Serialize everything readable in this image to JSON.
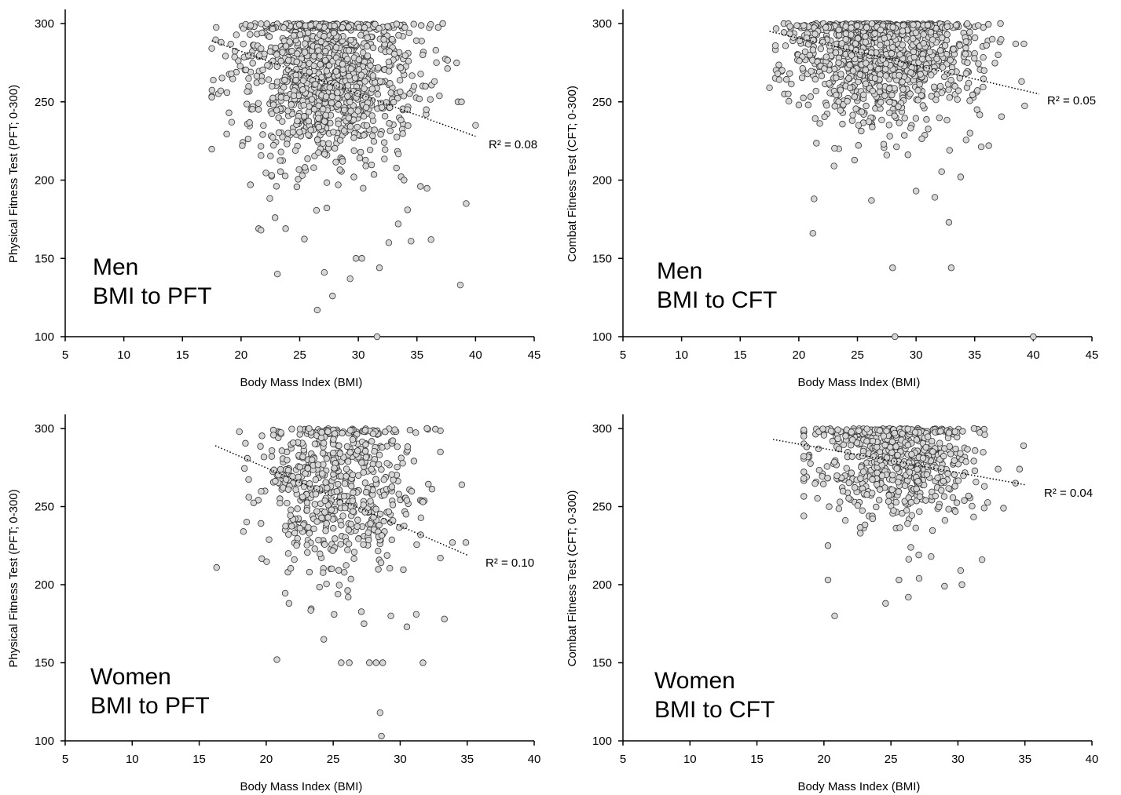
{
  "chart_data": [
    {
      "type": "scatter",
      "panel_label": [
        "Men",
        "BMI to PFT"
      ],
      "xlabel": "Body Mass Index (BMI)",
      "ylabel": "Physical Fitness Test (PFT; 0-300)",
      "xlim": [
        5,
        45
      ],
      "ylim": [
        100,
        300
      ],
      "xticks": [
        "5",
        "10",
        "15",
        "20",
        "25",
        "30",
        "35",
        "40",
        "45"
      ],
      "yticks": [
        "100",
        "150",
        "200",
        "250",
        "300"
      ],
      "r2_label": "R² = 0.08",
      "trendline": {
        "x": [
          17.5,
          40
        ],
        "y": [
          289,
          228
        ]
      },
      "grid": false,
      "legend": "none",
      "cloud": {
        "n": 1100,
        "x_center": 27.5,
        "x_spread": 3.6,
        "x_range": [
          17.5,
          40
        ],
        "y_center": 268,
        "y_spread": 28,
        "seed": 11
      },
      "points": [
        [
          17.5,
          253
        ],
        [
          18.3,
          288
        ],
        [
          19.2,
          237
        ],
        [
          20.1,
          222
        ],
        [
          20.8,
          197
        ],
        [
          21.5,
          169
        ],
        [
          21.7,
          168
        ],
        [
          23.1,
          140
        ],
        [
          22.9,
          176
        ],
        [
          23.8,
          169
        ],
        [
          26.5,
          117
        ],
        [
          27.1,
          141
        ],
        [
          27.8,
          126
        ],
        [
          29.3,
          137
        ],
        [
          29.8,
          150
        ],
        [
          30.3,
          150
        ],
        [
          31.6,
          100
        ],
        [
          31.8,
          144
        ],
        [
          32.6,
          160
        ],
        [
          33.4,
          172
        ],
        [
          34.5,
          161
        ],
        [
          35.3,
          196
        ],
        [
          36.2,
          162
        ],
        [
          37.2,
          300
        ],
        [
          38.5,
          250
        ],
        [
          38.8,
          250
        ],
        [
          38.7,
          133
        ],
        [
          39.2,
          185
        ],
        [
          40.0,
          235
        ],
        [
          35.8,
          245
        ],
        [
          36.5,
          263
        ],
        [
          35.5,
          280
        ],
        [
          33.9,
          200
        ],
        [
          34.2,
          181
        ]
      ]
    },
    {
      "type": "scatter",
      "panel_label": [
        "Men",
        "BMI to CFT"
      ],
      "xlabel": "Body Mass Index (BMI)",
      "ylabel": "Combat Fitness Test (CFT; 0-300)",
      "xlim": [
        5,
        45
      ],
      "ylim": [
        100,
        300
      ],
      "xticks": [
        "5",
        "10",
        "15",
        "20",
        "25",
        "30",
        "35",
        "40",
        "45"
      ],
      "yticks": [
        "100",
        "150",
        "200",
        "250",
        "300"
      ],
      "r2_label": "R² = 0.05",
      "trendline": {
        "x": [
          17.5,
          40.5
        ],
        "y": [
          295,
          255
        ]
      },
      "grid": false,
      "legend": "none",
      "cloud": {
        "n": 1200,
        "x_center": 27,
        "x_spread": 3.6,
        "x_range": [
          18,
          40
        ],
        "y_center": 283,
        "y_spread": 22,
        "seed": 23
      },
      "points": [
        [
          17.5,
          259
        ],
        [
          18.2,
          268
        ],
        [
          19.1,
          255
        ],
        [
          20.0,
          248
        ],
        [
          20.8,
          248
        ],
        [
          21.2,
          166
        ],
        [
          21.3,
          188
        ],
        [
          23.0,
          209
        ],
        [
          26.2,
          187
        ],
        [
          27.5,
          216
        ],
        [
          28.0,
          144
        ],
        [
          28.2,
          100
        ],
        [
          30.0,
          193
        ],
        [
          31.6,
          189
        ],
        [
          32.8,
          173
        ],
        [
          33.0,
          144
        ],
        [
          33.8,
          202
        ],
        [
          35.2,
          245
        ],
        [
          36.2,
          222
        ],
        [
          37.2,
          300
        ],
        [
          38.5,
          287
        ],
        [
          39.2,
          287
        ],
        [
          39.0,
          263
        ],
        [
          40.0,
          100
        ],
        [
          36.5,
          290
        ],
        [
          35.8,
          270
        ],
        [
          34.6,
          230
        ],
        [
          37.0,
          280
        ]
      ]
    },
    {
      "type": "scatter",
      "panel_label": [
        "Women",
        "BMI to PFT"
      ],
      "xlabel": "Body Mass Index (BMI)",
      "ylabel": "Physical Fitness Test (PFT; 0-300)",
      "xlim": [
        5,
        40
      ],
      "ylim": [
        100,
        300
      ],
      "xticks": [
        "5",
        "10",
        "15",
        "20",
        "25",
        "30",
        "35",
        "40"
      ],
      "yticks": [
        "100",
        "150",
        "200",
        "250",
        "300"
      ],
      "r2_label": "R² = 0.10",
      "trendline": {
        "x": [
          16.2,
          35
        ],
        "y": [
          289,
          219
        ]
      },
      "grid": false,
      "legend": "none",
      "cloud": {
        "n": 600,
        "x_center": 25.3,
        "x_spread": 2.9,
        "x_range": [
          18,
          33
        ],
        "y_center": 262,
        "y_spread": 28,
        "seed": 37
      },
      "points": [
        [
          16.3,
          211
        ],
        [
          18.3,
          234
        ],
        [
          18.7,
          256
        ],
        [
          20.8,
          152
        ],
        [
          21.7,
          188
        ],
        [
          24.3,
          165
        ],
        [
          25.6,
          150
        ],
        [
          26.2,
          150
        ],
        [
          27.3,
          175
        ],
        [
          27.7,
          150
        ],
        [
          28.2,
          150
        ],
        [
          28.5,
          118
        ],
        [
          28.6,
          103
        ],
        [
          28.7,
          150
        ],
        [
          30.5,
          173
        ],
        [
          31.2,
          181
        ],
        [
          31.7,
          150
        ],
        [
          33.3,
          178
        ],
        [
          33.9,
          227
        ],
        [
          34.6,
          264
        ],
        [
          34.9,
          227
        ],
        [
          32.0,
          300
        ],
        [
          31.7,
          253
        ],
        [
          30.5,
          254
        ]
      ]
    },
    {
      "type": "scatter",
      "panel_label": [
        "Women",
        "BMI to CFT"
      ],
      "xlabel": "Body Mass Index (BMI)",
      "ylabel": "Combat Fitness Test (CFT; 0-300)",
      "xlim": [
        5,
        40
      ],
      "ylim": [
        100,
        300
      ],
      "xticks": [
        "5",
        "10",
        "15",
        "20",
        "25",
        "30",
        "35",
        "40"
      ],
      "yticks": [
        "100",
        "150",
        "200",
        "250",
        "300"
      ],
      "r2_label": "R² = 0.04",
      "trendline": {
        "x": [
          16.2,
          35
        ],
        "y": [
          293,
          264
        ]
      },
      "grid": false,
      "legend": "none",
      "cloud": {
        "n": 650,
        "x_center": 25.5,
        "x_spread": 2.8,
        "x_range": [
          18.5,
          33
        ],
        "y_center": 281,
        "y_spread": 21,
        "seed": 53
      },
      "points": [
        [
          18.5,
          244
        ],
        [
          18.5,
          268
        ],
        [
          20.3,
          203
        ],
        [
          20.3,
          225
        ],
        [
          20.8,
          180
        ],
        [
          24.6,
          188
        ],
        [
          25.6,
          203
        ],
        [
          26.3,
          192
        ],
        [
          27.1,
          204
        ],
        [
          28.0,
          218
        ],
        [
          29.0,
          199
        ],
        [
          30.3,
          200
        ],
        [
          30.2,
          209
        ],
        [
          31.8,
          216
        ],
        [
          33.4,
          249
        ],
        [
          34.3,
          265
        ],
        [
          34.6,
          274
        ],
        [
          34.9,
          289
        ],
        [
          31.2,
          300
        ],
        [
          32.0,
          296
        ],
        [
          33.0,
          274
        ]
      ]
    }
  ]
}
